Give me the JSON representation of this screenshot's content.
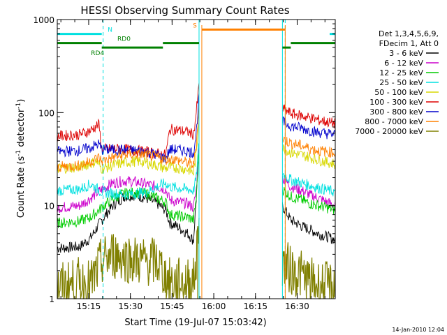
{
  "chart_data": {
    "type": "line",
    "title": "HESSI Observing Summary Count Rates",
    "xlabel": "Start Time (19-Jul-07 15:03:42)",
    "ylabel": "Count Rate (s",
    "ylabel_sup": "-1",
    "ylabel_mid": " detector",
    "ylabel_sup2": "-1",
    "ylabel_end": ")",
    "y_scale": "log",
    "ylim": [
      1,
      1000
    ],
    "xlim_minutes": [
      0,
      100
    ],
    "x_ticks": [
      {
        "label": "15:15",
        "minute": 11.3
      },
      {
        "label": "15:30",
        "minute": 26.3
      },
      {
        "label": "15:45",
        "minute": 41.3
      },
      {
        "label": "16:00",
        "minute": 56.3
      },
      {
        "label": "16:15",
        "minute": 71.3
      },
      {
        "label": "16:30",
        "minute": 86.3
      }
    ],
    "y_ticks": [
      {
        "label": "1",
        "value": 1
      },
      {
        "label": "10",
        "value": 10
      },
      {
        "label": "100",
        "value": 100
      },
      {
        "label": "1000",
        "value": 1000
      }
    ],
    "legend_header": [
      "Det 1,3,4,5,6,9,",
      "FDecim 1, Att 0"
    ],
    "series": [
      {
        "name": "3 - 6 keV",
        "color": "#000000",
        "points": [
          [
            0,
            3.5
          ],
          [
            8,
            3.6
          ],
          [
            12,
            4.5
          ],
          [
            16,
            7
          ],
          [
            20,
            10
          ],
          [
            24,
            12.5
          ],
          [
            28,
            13
          ],
          [
            32,
            12
          ],
          [
            36,
            10.5
          ],
          [
            39,
            9
          ],
          [
            40.5,
            6.5
          ],
          [
            43,
            6
          ],
          [
            47,
            5
          ],
          [
            49,
            4.2
          ],
          [
            50,
            12
          ],
          [
            51,
            40
          ],
          [
            81,
            10
          ],
          [
            84,
            7
          ],
          [
            88,
            6
          ],
          [
            91,
            5.5
          ],
          [
            94,
            5
          ],
          [
            100,
            4.3
          ]
        ]
      },
      {
        "name": "6 - 12 keV",
        "color": "#cc00cc",
        "points": [
          [
            0,
            9.5
          ],
          [
            8,
            10
          ],
          [
            12,
            12
          ],
          [
            16,
            15
          ],
          [
            20,
            17.5
          ],
          [
            24,
            18.5
          ],
          [
            28,
            18
          ],
          [
            32,
            17
          ],
          [
            36,
            16
          ],
          [
            39,
            15
          ],
          [
            40.5,
            11.5
          ],
          [
            43,
            11
          ],
          [
            47,
            10.5
          ],
          [
            49,
            9.5
          ],
          [
            50,
            15
          ],
          [
            51,
            45
          ],
          [
            81,
            20
          ],
          [
            84,
            16
          ],
          [
            88,
            14.5
          ],
          [
            91,
            13
          ],
          [
            94,
            12
          ],
          [
            100,
            10
          ]
        ]
      },
      {
        "name": "12 - 25 keV",
        "color": "#00cc00",
        "points": [
          [
            0,
            6.5
          ],
          [
            8,
            6.8
          ],
          [
            12,
            7.5
          ],
          [
            16,
            9.5
          ],
          [
            20,
            12
          ],
          [
            24,
            13.5
          ],
          [
            28,
            14
          ],
          [
            32,
            13.5
          ],
          [
            36,
            12
          ],
          [
            39,
            11
          ],
          [
            40.5,
            8
          ],
          [
            43,
            7.8
          ],
          [
            47,
            7.5
          ],
          [
            49,
            7
          ],
          [
            50,
            12
          ],
          [
            51,
            40
          ],
          [
            81,
            15
          ],
          [
            84,
            12.5
          ],
          [
            88,
            11.5
          ],
          [
            91,
            10.5
          ],
          [
            94,
            10
          ],
          [
            100,
            9
          ]
        ]
      },
      {
        "name": "25 - 50 keV",
        "color": "#00e0e0",
        "points": [
          [
            0,
            14.5
          ],
          [
            8,
            15
          ],
          [
            12,
            17
          ],
          [
            16,
            14
          ],
          [
            20,
            13.5
          ],
          [
            24,
            13.2
          ],
          [
            28,
            13.5
          ],
          [
            32,
            14
          ],
          [
            36,
            16
          ],
          [
            39,
            17.5
          ],
          [
            40.5,
            16
          ],
          [
            43,
            15.5
          ],
          [
            47,
            15
          ],
          [
            49,
            14.5
          ],
          [
            50,
            20
          ],
          [
            51,
            50
          ],
          [
            81,
            22
          ],
          [
            84,
            19
          ],
          [
            88,
            17.5
          ],
          [
            91,
            16.5
          ],
          [
            94,
            15.5
          ],
          [
            100,
            14
          ]
        ]
      },
      {
        "name": "50 - 100 keV",
        "color": "#d8d800",
        "points": [
          [
            0,
            25
          ],
          [
            8,
            26
          ],
          [
            12,
            28.5
          ],
          [
            14,
            30
          ],
          [
            16,
            25
          ],
          [
            20,
            27
          ],
          [
            24,
            29
          ],
          [
            28,
            30
          ],
          [
            32,
            29
          ],
          [
            36,
            27
          ],
          [
            39,
            25
          ],
          [
            40.5,
            26
          ],
          [
            43,
            25.5
          ],
          [
            47,
            24.5
          ],
          [
            49,
            22.5
          ],
          [
            50,
            35
          ],
          [
            51,
            90
          ],
          [
            81,
            42
          ],
          [
            84,
            37
          ],
          [
            88,
            35
          ],
          [
            91,
            33
          ],
          [
            94,
            31
          ],
          [
            100,
            28
          ]
        ]
      },
      {
        "name": "100 - 300 keV",
        "color": "#dd0000",
        "points": [
          [
            0,
            56
          ],
          [
            8,
            58
          ],
          [
            12,
            64
          ],
          [
            14,
            72
          ],
          [
            15,
            74
          ],
          [
            16,
            40
          ],
          [
            20,
            41
          ],
          [
            24,
            40.5
          ],
          [
            28,
            39
          ],
          [
            32,
            38
          ],
          [
            36,
            36
          ],
          [
            39,
            35
          ],
          [
            40.5,
            66
          ],
          [
            43,
            65
          ],
          [
            47,
            62
          ],
          [
            49,
            58
          ],
          [
            50,
            100
          ],
          [
            51,
            200
          ],
          [
            81,
            110
          ],
          [
            84,
            98
          ],
          [
            88,
            92
          ],
          [
            91,
            88
          ],
          [
            94,
            83
          ],
          [
            100,
            76
          ]
        ]
      },
      {
        "name": "300 - 800 keV",
        "color": "#0000cc",
        "points": [
          [
            0,
            38
          ],
          [
            8,
            39
          ],
          [
            12,
            42
          ],
          [
            14,
            45
          ],
          [
            15,
            46
          ],
          [
            16,
            40
          ],
          [
            20,
            40
          ],
          [
            24,
            39.5
          ],
          [
            28,
            39
          ],
          [
            32,
            38
          ],
          [
            36,
            35
          ],
          [
            39,
            32
          ],
          [
            40.5,
            40
          ],
          [
            43,
            40
          ],
          [
            47,
            38.5
          ],
          [
            49,
            37
          ],
          [
            50,
            60
          ],
          [
            51,
            150
          ],
          [
            81,
            80
          ],
          [
            84,
            72
          ],
          [
            88,
            68
          ],
          [
            91,
            64
          ],
          [
            94,
            61
          ],
          [
            100,
            58
          ]
        ]
      },
      {
        "name": "800 - 7000 keV",
        "color": "#ff8000",
        "points": [
          [
            0,
            26
          ],
          [
            8,
            27
          ],
          [
            12,
            30
          ],
          [
            14,
            32
          ],
          [
            15,
            33
          ],
          [
            16,
            30
          ],
          [
            20,
            33
          ],
          [
            24,
            35
          ],
          [
            28,
            36
          ],
          [
            32,
            35
          ],
          [
            36,
            33
          ],
          [
            39,
            31
          ],
          [
            40.5,
            32
          ],
          [
            43,
            31
          ],
          [
            47,
            29
          ],
          [
            49,
            27
          ],
          [
            50,
            45
          ],
          [
            51,
            120
          ],
          [
            81,
            52
          ],
          [
            84,
            47
          ],
          [
            88,
            44
          ],
          [
            91,
            41
          ],
          [
            94,
            39
          ],
          [
            100,
            37
          ]
        ]
      },
      {
        "name": "7000 - 20000 keV",
        "color": "#808000",
        "points": [
          [
            0,
            1.3
          ],
          [
            8,
            1.5
          ],
          [
            12,
            1.4
          ],
          [
            16,
            2.5
          ],
          [
            20,
            3
          ],
          [
            24,
            2.8
          ],
          [
            28,
            2.6
          ],
          [
            32,
            2.5
          ],
          [
            36,
            2.5
          ],
          [
            39,
            1.7
          ],
          [
            40.5,
            1.5
          ],
          [
            43,
            1.5
          ],
          [
            47,
            1.5
          ],
          [
            49,
            1.5
          ],
          [
            50,
            2.5
          ],
          [
            51,
            8
          ],
          [
            81,
            2.5
          ],
          [
            84,
            2
          ],
          [
            88,
            1.8
          ],
          [
            91,
            1.5
          ],
          [
            94,
            1.4
          ],
          [
            100,
            1.3
          ]
        ]
      }
    ],
    "gap_minutes": [
      51,
      81
    ],
    "state_bars": [
      {
        "label": "N",
        "color": "#00e0e0",
        "value": 700,
        "segments": [
          [
            0,
            16
          ],
          [
            98,
            100
          ]
        ],
        "label_minute": 19
      },
      {
        "label": "S",
        "color": "#ff8000",
        "value": 780,
        "segments": [
          [
            52,
            82
          ]
        ],
        "label_minute": 49.5
      },
      {
        "label": "RD0",
        "color": "#008000",
        "value": 560,
        "segments": [
          [
            0,
            16
          ],
          [
            38,
            51
          ],
          [
            84,
            100
          ]
        ],
        "label_minute": 24
      },
      {
        "label": "RD4",
        "color": "#008000",
        "value": 500,
        "segments": [
          [
            16,
            38
          ],
          [
            81,
            84
          ]
        ],
        "label_minute": 14.5
      }
    ],
    "vlines_cyan_dashed": [
      16.5,
      82,
      100
    ],
    "vlines_cyan_solid": [
      51,
      81
    ],
    "vlines_orange": [
      52,
      82
    ],
    "vlines_olive": [
      50.5
    ]
  },
  "footer_date": "14-Jan-2010 12:04"
}
